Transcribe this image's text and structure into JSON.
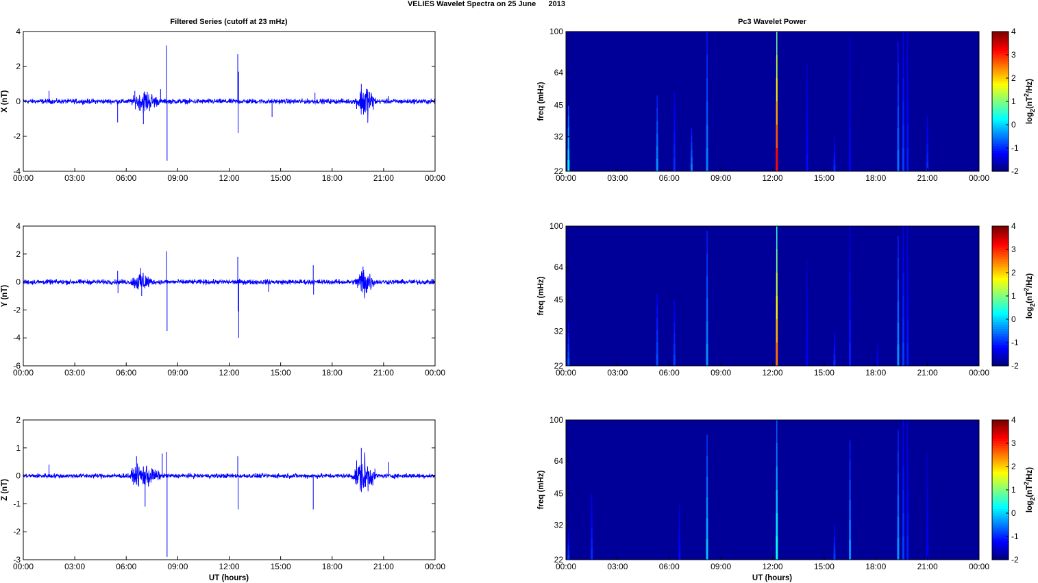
{
  "figure": {
    "title": "VELIES Wavelet Spectra on 25 June      2013",
    "left_title": "Filtered Series (cutoff at 23 mHz)",
    "right_title": "Pc3 Wavelet Power",
    "xlabel": "UT (hours)",
    "x_ticks": [
      "00:00",
      "03:00",
      "06:00",
      "09:00",
      "12:00",
      "15:00",
      "18:00",
      "21:00",
      "00:00"
    ]
  },
  "chart_data": [
    {
      "type": "line",
      "panel": "series-x",
      "ylabel": "X (nT)",
      "ylim": [
        -4,
        4
      ],
      "y_ticks": [
        "4",
        "2",
        "0",
        "-2",
        "-4"
      ],
      "y_tick_values": [
        4,
        2,
        0,
        -2,
        -4
      ],
      "xlim_hours": [
        0,
        24
      ],
      "line_color": "#0000ff",
      "background_noise_nT": 0.12,
      "spikes": [
        {
          "t": 1.5,
          "value": 0.6
        },
        {
          "t": 5.5,
          "value": -1.2
        },
        {
          "t": 6.5,
          "value": 0.6
        },
        {
          "t": 7.0,
          "value": -1.3
        },
        {
          "t": 8.0,
          "value": 0.7
        },
        {
          "t": 8.35,
          "value": 3.2
        },
        {
          "t": 8.38,
          "value": -3.4
        },
        {
          "t": 12.5,
          "value": 2.7
        },
        {
          "t": 12.52,
          "value": -1.8
        },
        {
          "t": 12.55,
          "value": 1.7
        },
        {
          "t": 14.5,
          "value": -0.9
        },
        {
          "t": 17.0,
          "value": 0.5
        },
        {
          "t": 19.7,
          "value": 1.0
        },
        {
          "t": 19.9,
          "value": -0.5
        },
        {
          "t": 21.3,
          "value": 0.3
        }
      ],
      "bursts": [
        {
          "t0": 6.2,
          "t1": 8.0,
          "amp": 0.5
        },
        {
          "t0": 19.3,
          "t1": 20.6,
          "amp": 0.9
        }
      ]
    },
    {
      "type": "line",
      "panel": "series-y",
      "ylabel": "Y (nT)",
      "ylim": [
        -6,
        4
      ],
      "y_ticks": [
        "4",
        "2",
        "0",
        "-2",
        "-4",
        "-6"
      ],
      "y_tick_values": [
        4,
        2,
        0,
        -2,
        -4,
        -6
      ],
      "xlim_hours": [
        0,
        24
      ],
      "line_color": "#0000ff",
      "background_noise_nT": 0.15,
      "spikes": [
        {
          "t": 5.5,
          "value": 0.8
        },
        {
          "t": 5.52,
          "value": -0.8
        },
        {
          "t": 6.9,
          "value": -1.0
        },
        {
          "t": 8.35,
          "value": 2.2
        },
        {
          "t": 8.38,
          "value": -3.5
        },
        {
          "t": 12.5,
          "value": 1.8
        },
        {
          "t": 12.52,
          "value": -2.1
        },
        {
          "t": 12.55,
          "value": -4.0
        },
        {
          "t": 14.3,
          "value": -0.7
        },
        {
          "t": 16.9,
          "value": 1.2
        },
        {
          "t": 16.92,
          "value": -0.9
        },
        {
          "t": 19.8,
          "value": 1.1
        }
      ],
      "bursts": [
        {
          "t0": 6.2,
          "t1": 7.6,
          "amp": 0.6
        },
        {
          "t0": 19.3,
          "t1": 20.5,
          "amp": 1.0
        }
      ]
    },
    {
      "type": "line",
      "panel": "series-z",
      "ylabel": "Z (nT)",
      "ylim": [
        -3,
        2
      ],
      "y_ticks": [
        "2",
        "1",
        "0",
        "-1",
        "-2",
        "-3"
      ],
      "y_tick_values": [
        2,
        1,
        0,
        -1,
        -2,
        -3
      ],
      "xlim_hours": [
        0,
        24
      ],
      "line_color": "#0000ff",
      "background_noise_nT": 0.07,
      "spikes": [
        {
          "t": 1.5,
          "value": 0.4
        },
        {
          "t": 6.6,
          "value": 0.7
        },
        {
          "t": 7.1,
          "value": -1.1
        },
        {
          "t": 8.1,
          "value": 0.8
        },
        {
          "t": 8.35,
          "value": 0.85
        },
        {
          "t": 8.38,
          "value": -2.9
        },
        {
          "t": 12.5,
          "value": 0.7
        },
        {
          "t": 12.52,
          "value": -1.2
        },
        {
          "t": 16.9,
          "value": -1.2
        },
        {
          "t": 19.7,
          "value": 1.0
        },
        {
          "t": 19.9,
          "value": -0.4
        },
        {
          "t": 21.3,
          "value": 0.5
        }
      ],
      "bursts": [
        {
          "t0": 6.0,
          "t1": 8.1,
          "amp": 0.35
        },
        {
          "t0": 19.1,
          "t1": 20.6,
          "amp": 0.6
        }
      ]
    },
    {
      "type": "heatmap",
      "panel": "wavelet-x",
      "ylabel": "freq (mHz)",
      "y_ticks": [
        "100",
        "64",
        "45",
        "32",
        "22"
      ],
      "y_tick_values": [
        100,
        64,
        45,
        32,
        22
      ],
      "ylim_mHz": [
        22,
        100
      ],
      "y_scale": "log",
      "xlim_hours": [
        0,
        24
      ],
      "colorbar": {
        "label": "log2(nT2/Hz)",
        "range": [
          -2,
          4
        ],
        "ticks": [
          "4",
          "3",
          "2",
          "1",
          "0",
          "-1",
          "-2"
        ],
        "colormap": "jet"
      },
      "background_level": -1.85,
      "streaks": [
        {
          "t": 0.15,
          "fmax": 45,
          "level": 0.2
        },
        {
          "t": 5.3,
          "fmax": 50,
          "level": -0.4
        },
        {
          "t": 6.3,
          "fmax": 52,
          "level": -1.0
        },
        {
          "t": 7.3,
          "fmax": 35,
          "level": -0.5
        },
        {
          "t": 8.2,
          "fmax": 100,
          "level": -0.5
        },
        {
          "t": 12.25,
          "fmax": 100,
          "level": 3.2
        },
        {
          "t": 14.0,
          "fmax": 70,
          "level": -1.2
        },
        {
          "t": 15.6,
          "fmax": 32,
          "level": -1.0
        },
        {
          "t": 16.5,
          "fmax": 95,
          "level": -1.3
        },
        {
          "t": 19.3,
          "fmax": 90,
          "level": -0.6
        },
        {
          "t": 19.6,
          "fmax": 100,
          "level": -0.9
        },
        {
          "t": 19.85,
          "fmax": 100,
          "level": -1.1
        },
        {
          "t": 21.0,
          "fmax": 40,
          "level": -1.0
        }
      ]
    },
    {
      "type": "heatmap",
      "panel": "wavelet-y",
      "ylabel": "freq (mHz)",
      "y_ticks": [
        "100",
        "64",
        "45",
        "32",
        "22"
      ],
      "y_tick_values": [
        100,
        64,
        45,
        32,
        22
      ],
      "ylim_mHz": [
        22,
        100
      ],
      "y_scale": "log",
      "xlim_hours": [
        0,
        24
      ],
      "colorbar": {
        "label": "log2(nT2/Hz)",
        "range": [
          -2,
          4
        ],
        "ticks": [
          "4",
          "3",
          "2",
          "1",
          "0",
          "-1",
          "-2"
        ],
        "colormap": "jet"
      },
      "background_level": -1.85,
      "streaks": [
        {
          "t": 0.15,
          "fmax": 35,
          "level": -0.7
        },
        {
          "t": 5.3,
          "fmax": 48,
          "level": -0.8
        },
        {
          "t": 6.3,
          "fmax": 45,
          "level": -0.9
        },
        {
          "t": 8.2,
          "fmax": 95,
          "level": -0.4
        },
        {
          "t": 12.25,
          "fmax": 100,
          "level": 2.6
        },
        {
          "t": 14.0,
          "fmax": 70,
          "level": -1.3
        },
        {
          "t": 15.6,
          "fmax": 32,
          "level": -1.0
        },
        {
          "t": 16.5,
          "fmax": 100,
          "level": -1.1
        },
        {
          "t": 18.1,
          "fmax": 28,
          "level": -1.3
        },
        {
          "t": 19.3,
          "fmax": 90,
          "level": -0.4
        },
        {
          "t": 19.6,
          "fmax": 100,
          "level": -0.9
        },
        {
          "t": 19.85,
          "fmax": 100,
          "level": -1.1
        }
      ]
    },
    {
      "type": "heatmap",
      "panel": "wavelet-z",
      "ylabel": "freq (mHz)",
      "y_ticks": [
        "100",
        "64",
        "45",
        "32",
        "22"
      ],
      "y_tick_values": [
        100,
        64,
        45,
        32,
        22
      ],
      "ylim_mHz": [
        22,
        100
      ],
      "y_scale": "log",
      "xlim_hours": [
        0,
        24
      ],
      "colorbar": {
        "label": "log2(nT2/Hz)",
        "range": [
          -2,
          4
        ],
        "ticks": [
          "4",
          "3",
          "2",
          "1",
          "0",
          "-1",
          "-2"
        ],
        "colormap": "jet"
      },
      "background_level": -1.85,
      "streaks": [
        {
          "t": 0.15,
          "fmax": 30,
          "level": -0.9
        },
        {
          "t": 1.5,
          "fmax": 45,
          "level": -1.0
        },
        {
          "t": 6.6,
          "fmax": 40,
          "level": -1.2
        },
        {
          "t": 8.2,
          "fmax": 85,
          "level": -0.1
        },
        {
          "t": 12.25,
          "fmax": 100,
          "level": 0.3
        },
        {
          "t": 15.6,
          "fmax": 32,
          "level": -0.9
        },
        {
          "t": 16.5,
          "fmax": 80,
          "level": -0.4
        },
        {
          "t": 19.3,
          "fmax": 90,
          "level": -0.4
        },
        {
          "t": 19.6,
          "fmax": 100,
          "level": -0.9
        },
        {
          "t": 19.85,
          "fmax": 100,
          "level": -1.1
        },
        {
          "t": 21.0,
          "fmax": 70,
          "level": -1.3
        }
      ]
    }
  ]
}
